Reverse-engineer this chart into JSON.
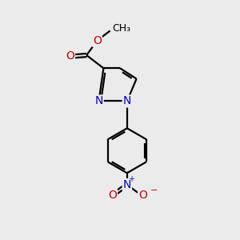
{
  "background_color": "#ebebeb",
  "bond_color": "#000000",
  "bond_width": 1.6,
  "atom_colors": {
    "N": "#0000cc",
    "O": "#cc0000",
    "C": "#000000"
  },
  "font_size": 10
}
